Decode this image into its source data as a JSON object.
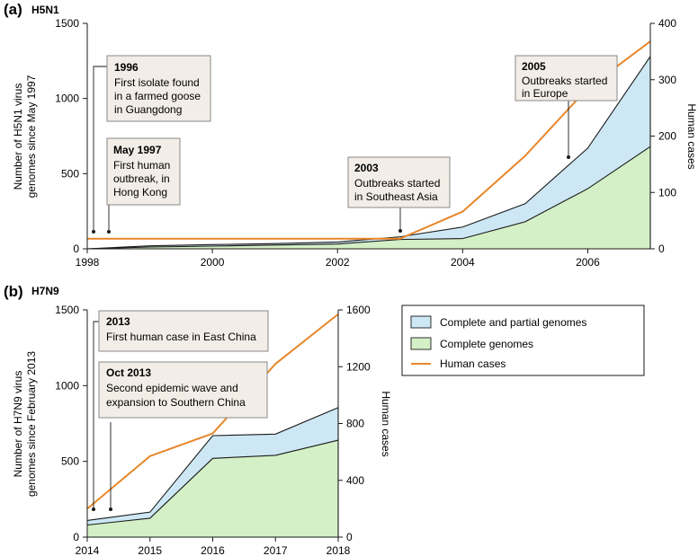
{
  "colors": {
    "partial": "#cde8f4",
    "complete": "#d4f0c6",
    "human": "#e8862a",
    "outline": "#1a1a1a",
    "annotation_bg": "#f2ede6",
    "annotation_border": "#8a8a8a"
  },
  "chart_data": [
    {
      "type": "area",
      "panel_label": "(a)",
      "title": "H5N1",
      "xlabel": "",
      "ylabel": "Number of H5N1 virus genomes since May 1997",
      "ylabel_lines": [
        "Number of H5N1 virus",
        "genomes since May 1997"
      ],
      "ylabel_right": "Human cases",
      "xlim": [
        1998,
        2007
      ],
      "ylim": [
        0,
        1500
      ],
      "ylim_right": [
        0,
        400
      ],
      "x_ticks": [
        1998,
        2000,
        2002,
        2004,
        2006
      ],
      "x_tick_labels": [
        "1998",
        "2000",
        "2002",
        "2004",
        "2006"
      ],
      "y_ticks": [
        0,
        500,
        1000,
        1500
      ],
      "y_tick_labels": [
        "0",
        "500",
        "1000",
        "1500"
      ],
      "y_right_ticks": [
        0,
        100,
        200,
        300,
        400
      ],
      "y_right_tick_labels": [
        "0",
        "100",
        "200",
        "300",
        "400"
      ],
      "series": [
        {
          "name": "Complete and partial genomes",
          "x": [
            1998,
            1999,
            2000,
            2001,
            2002,
            2003,
            2004,
            2005,
            2006,
            2007
          ],
          "values": [
            0,
            20,
            28,
            35,
            45,
            80,
            145,
            300,
            670,
            1280
          ]
        },
        {
          "name": "Complete genomes",
          "x": [
            1998,
            1999,
            2000,
            2001,
            2002,
            2003,
            2004,
            2005,
            2006,
            2007
          ],
          "values": [
            0,
            12,
            18,
            25,
            32,
            62,
            68,
            180,
            400,
            680
          ]
        },
        {
          "name": "Human cases",
          "axis": "right",
          "x": [
            1998,
            2003,
            2004,
            2005,
            2006,
            2007
          ],
          "values": [
            18,
            18,
            66,
            165,
            285,
            368
          ]
        }
      ],
      "annotations": [
        {
          "year": "1996",
          "text": [
            "First isolate found",
            "in a farmed goose",
            "in Guangdong"
          ],
          "x": 1998.1,
          "y": 120
        },
        {
          "year": "May 1997",
          "text": [
            "First human",
            "outbreak, in",
            "Hong Kong"
          ],
          "x": 1998.35,
          "y": 120
        },
        {
          "year": "2003",
          "text": [
            "Outbreaks started",
            "in Southeast Asia"
          ],
          "x": 2002.98,
          "y": 120
        },
        {
          "year": "2005",
          "text": [
            "Outbreaks started",
            "in Europe"
          ],
          "x": 2005.7,
          "y": 610
        }
      ]
    },
    {
      "type": "area",
      "panel_label": "(b)",
      "title": "H7N9",
      "xlabel": "",
      "ylabel": "Number of H7N9 virus genomes since February 2013",
      "ylabel_lines": [
        "Number of H7N9 virus",
        "genomes since February 2013"
      ],
      "ylabel_right": "Human cases",
      "xlim": [
        2014,
        2018
      ],
      "ylim": [
        0,
        1500
      ],
      "ylim_right": [
        0,
        1600
      ],
      "x_ticks": [
        2014,
        2015,
        2016,
        2017,
        2018
      ],
      "x_tick_labels": [
        "2014",
        "2015",
        "2016",
        "2017",
        "2018"
      ],
      "y_ticks": [
        0,
        500,
        1000,
        1500
      ],
      "y_tick_labels": [
        "0",
        "500",
        "1000",
        "1500"
      ],
      "y_right_ticks": [
        0,
        400,
        800,
        1200,
        1600
      ],
      "y_right_tick_labels": [
        "0",
        "400",
        "800",
        "1200",
        "1600"
      ],
      "series": [
        {
          "name": "Complete and partial genomes",
          "x": [
            2014,
            2015,
            2016,
            2017,
            2018
          ],
          "values": [
            110,
            165,
            670,
            680,
            855
          ]
        },
        {
          "name": "Complete genomes",
          "x": [
            2014,
            2015,
            2016,
            2017,
            2018
          ],
          "values": [
            80,
            125,
            520,
            540,
            640
          ]
        },
        {
          "name": "Human cases",
          "axis": "right",
          "x": [
            2014,
            2015,
            2016,
            2017,
            2018
          ],
          "values": [
            200,
            570,
            730,
            1220,
            1570
          ]
        }
      ],
      "annotations": [
        {
          "year": "2013",
          "text": [
            "First human case in East China"
          ],
          "x": 2014.1,
          "y": 185
        },
        {
          "year": "Oct 2013",
          "text": [
            "Second epidemic wave and",
            "expansion to Southern China"
          ],
          "x": 2014.38,
          "y": 185
        }
      ],
      "legend": [
        {
          "label": "Complete and partial genomes",
          "kind": "swatch",
          "color": "#cde8f4"
        },
        {
          "label": "Complete genomes",
          "kind": "swatch",
          "color": "#d4f0c6"
        },
        {
          "label": "Human cases",
          "kind": "line",
          "color": "#e8862a"
        }
      ],
      "legend_position": "right"
    }
  ]
}
